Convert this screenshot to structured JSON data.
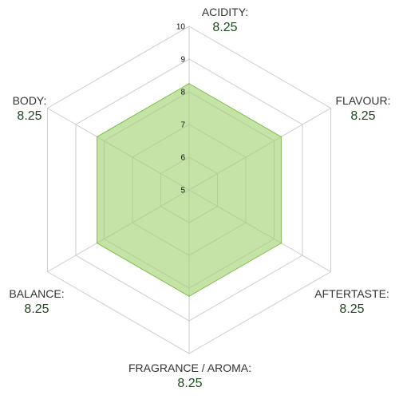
{
  "chart_data": {
    "type": "radar",
    "title": "",
    "axes": [
      {
        "name": "ACIDITY:",
        "value_label": "8.25"
      },
      {
        "name": "FLAVOUR:",
        "value_label": "8.25"
      },
      {
        "name": "AFTERTASTE:",
        "value_label": "8.25"
      },
      {
        "name": "FRAGRANCE / AROMA:",
        "value_label": "8.25"
      },
      {
        "name": "BALANCE:",
        "value_label": "8.25"
      },
      {
        "name": "BODY:",
        "value_label": "8.25"
      }
    ],
    "series": [
      {
        "values": [
          8.25,
          8.25,
          8.25,
          8.25,
          8.25,
          8.25
        ]
      }
    ],
    "range": [
      5,
      10
    ],
    "ticks": [
      "5",
      "6",
      "7",
      "8",
      "9",
      "10"
    ],
    "tick_values": [
      5,
      6,
      7,
      8,
      9,
      10
    ],
    "grid": true,
    "colors": {
      "fill": "#9fd16b",
      "stroke": "#7fbf4a",
      "grid": "#cccccc"
    }
  }
}
